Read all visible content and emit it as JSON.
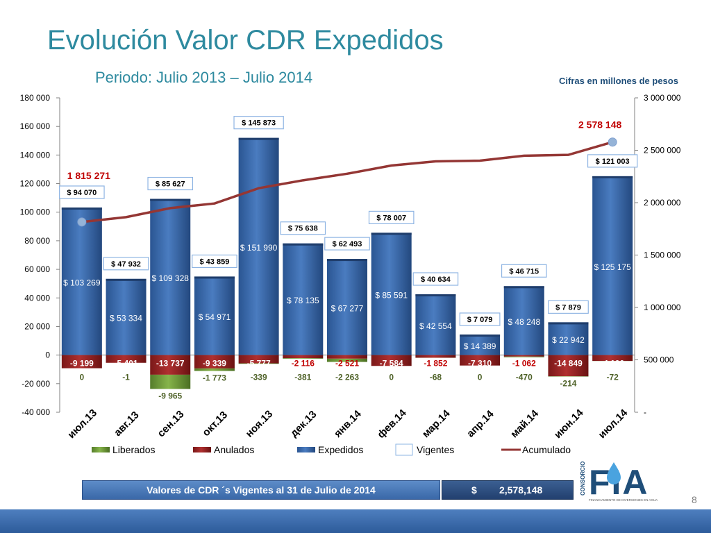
{
  "title": "Evolución Valor CDR Expedidos",
  "subtitle": "Periodo: Julio 2013 – Julio 2014",
  "units_note": "Cifras en millones de pesos",
  "colors": {
    "title": "#2e8a9f",
    "expedidos": "#2f5fa0",
    "anulados": "#8c1d1d",
    "liberados": "#6a9a35",
    "acumulado": "#943634",
    "anulados_label": "#c00000",
    "liberados_label": "#4f6228"
  },
  "chart_data": {
    "type": "bar",
    "categories": [
      "июл.13",
      "авг.13",
      "сен.13",
      "окт.13",
      "ноя.13",
      "дек.13",
      "янв.14",
      "фев.14",
      "мар.14",
      "апр.14",
      "май.14",
      "июн.14",
      "июл.14"
    ],
    "y_left": {
      "min": -40000,
      "max": 180000,
      "step": 20000,
      "tick_labels": [
        "-40 000",
        "-20 000",
        "0",
        "20 000",
        "40 000",
        "60 000",
        "80 000",
        "100 000",
        "120 000",
        "140 000",
        "160 000",
        "180 000"
      ]
    },
    "y_right": {
      "min": 0,
      "max": 3000000,
      "step": 500000,
      "tick_labels": [
        "-",
        "500 000",
        "1 000 000",
        "1 500 000",
        "2 000 000",
        "2 500 000",
        "3 000 000"
      ]
    },
    "series": [
      {
        "name": "Expedidos",
        "axis": "left",
        "values": [
          103269,
          53334,
          109328,
          54971,
          151990,
          78135,
          67277,
          85591,
          42554,
          14389,
          48248,
          22942,
          125175
        ],
        "labels": [
          "$ 103 269",
          "$ 53 334",
          "$ 109 328",
          "$ 54 971",
          "$ 151 990",
          "$ 78 135",
          "$ 67 277",
          "$ 85 591",
          "$ 42 554",
          "$ 14 389",
          "$ 48 248",
          "$ 22 942",
          "$ 125 175"
        ]
      },
      {
        "name": "Anulados",
        "axis": "left",
        "values": [
          -9199,
          -5401,
          -13737,
          -9339,
          -5777,
          -2116,
          -2521,
          -7584,
          -1852,
          -7310,
          -1062,
          -14849,
          -4100
        ],
        "labels": [
          "-9 199",
          "-5 401",
          "-13 737",
          "-9 339",
          "-5 777",
          "-2 116",
          "-2 521",
          "-7 584",
          "-1 852",
          "-7 310",
          "-1 062",
          "-14 849",
          "-4 100"
        ]
      },
      {
        "name": "Liberados",
        "axis": "left",
        "values": [
          0,
          -1,
          -9965,
          -1773,
          -339,
          -381,
          -2263,
          0,
          -68,
          0,
          -470,
          -214,
          -72
        ],
        "labels": [
          "0",
          "-1",
          "-9 965",
          "-1 773",
          "-339",
          "-381",
          "-2 263",
          "0",
          "-68",
          "0",
          "-470",
          "-214",
          "-72"
        ]
      },
      {
        "name": "Vigentes",
        "axis": "left",
        "values": [
          94070,
          47932,
          85627,
          43859,
          145873,
          75638,
          62493,
          78007,
          40634,
          7079,
          46715,
          7879,
          121003
        ],
        "labels": [
          "$ 94 070",
          "$ 47 932",
          "$ 85 627",
          "$ 43 859",
          "$ 145 873",
          "$ 75 638",
          "$ 62 493",
          "$ 78 007",
          "$ 40 634",
          "$ 7 079",
          "$ 46 715",
          "$ 7 879",
          "$ 121 003"
        ]
      },
      {
        "name": "Acumulado",
        "axis": "right",
        "values": [
          1815271,
          1862000,
          1948000,
          1992000,
          2138000,
          2213000,
          2276000,
          2354000,
          2394000,
          2401000,
          2448000,
          2456000,
          2578148
        ]
      }
    ],
    "annotations": [
      {
        "text": "1 815 271",
        "index": 0,
        "series": "Acumulado"
      },
      {
        "text": "2 578 148",
        "index": 12,
        "series": "Acumulado"
      }
    ],
    "legend": [
      "Liberados",
      "Anulados",
      "Expedidos",
      "Vigentes",
      "Acumulado"
    ],
    "legend_position": "bottom"
  },
  "summary": {
    "label": "Valores de CDR ´s Vigentes al 31 de Julio de 2014",
    "currency": "$",
    "value": "2,578,148"
  },
  "logo": {
    "vertical_text": "CONSORCIO",
    "letters": "FIA",
    "tagline": "FINANCIAMIENTO DE INVERSIONES EN AGUA"
  },
  "page_number": "8"
}
